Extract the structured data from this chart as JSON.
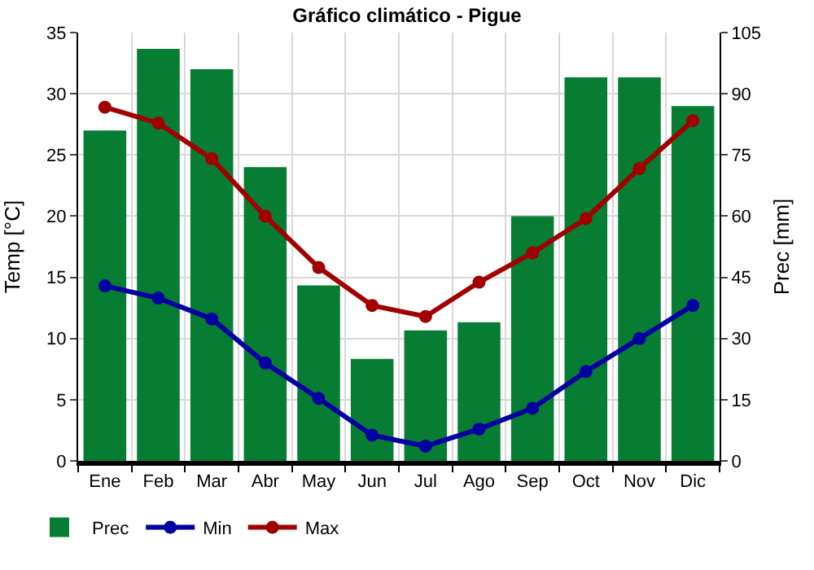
{
  "chart_data": {
    "type": "bar",
    "title": "Gráfico climático - Pigue",
    "ylabel": "Temp [°C]",
    "y2label": "Prec [mm]",
    "categories": [
      "Ene",
      "Feb",
      "Mar",
      "Abr",
      "May",
      "Jun",
      "Jul",
      "Ago",
      "Sep",
      "Oct",
      "Nov",
      "Dic"
    ],
    "series": [
      {
        "name": "Prec",
        "axis": "y2",
        "color": "#067d32",
        "values": [
          81,
          101,
          96,
          72,
          43,
          25,
          32,
          34,
          60,
          94,
          94,
          87
        ]
      },
      {
        "name": "Min",
        "type": "line",
        "color": "#0000a0",
        "values": [
          14.3,
          13.3,
          11.6,
          8.0,
          5.1,
          2.1,
          1.2,
          2.6,
          4.3,
          7.3,
          10.0,
          12.7
        ]
      },
      {
        "name": "Max",
        "type": "line",
        "color": "#a00000",
        "values": [
          28.9,
          27.6,
          24.7,
          20.0,
          15.8,
          12.7,
          11.8,
          14.6,
          17.0,
          19.8,
          23.9,
          27.8
        ]
      }
    ],
    "ylim": [
      0,
      35
    ],
    "yticks": [
      0,
      5,
      10,
      15,
      20,
      25,
      30,
      35
    ],
    "y2lim": [
      0,
      105
    ],
    "y2ticks": [
      0,
      15,
      30,
      45,
      60,
      75,
      90,
      105
    ],
    "grid": true,
    "legend": "bottom left",
    "marker": "circle"
  }
}
